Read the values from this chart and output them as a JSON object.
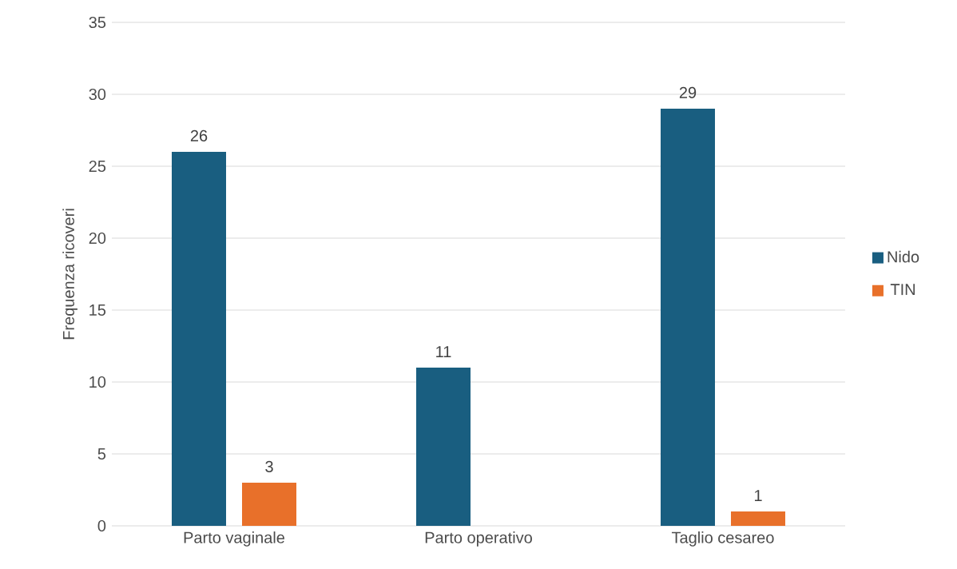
{
  "chart_data": {
    "type": "bar",
    "ylabel": "Frequenza ricoveri",
    "categories": [
      "Parto vaginale",
      "Parto operativo",
      "Taglio cesareo"
    ],
    "series": [
      {
        "name": "Nido",
        "color": "#195e80",
        "values": [
          26,
          11,
          29
        ]
      },
      {
        "name": "TIN",
        "color": "#e8702a",
        "values": [
          3,
          null,
          1
        ]
      }
    ],
    "ylim": [
      0,
      35
    ],
    "yticks": [
      0,
      5,
      10,
      15,
      20,
      25,
      30,
      35
    ],
    "grid": "y",
    "legend": "right",
    "data_labels": true
  }
}
